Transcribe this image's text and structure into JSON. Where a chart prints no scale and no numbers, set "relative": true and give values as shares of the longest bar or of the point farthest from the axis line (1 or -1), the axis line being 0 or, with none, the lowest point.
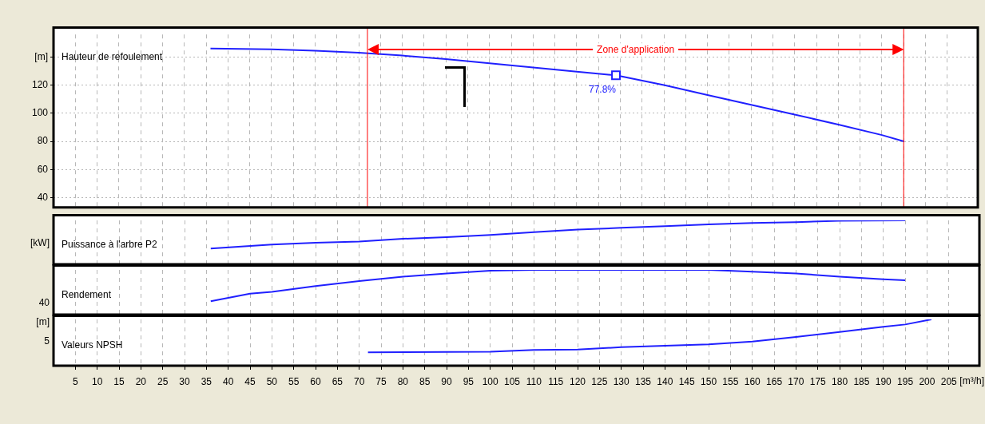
{
  "chart_data": [
    {
      "type": "line",
      "title": "Hauteur de refoulement",
      "xlim": [
        0,
        212
      ],
      "xticks": [
        5,
        10,
        15,
        20,
        25,
        30,
        35,
        40,
        45,
        50,
        55,
        60,
        65,
        70,
        75,
        80,
        85,
        90,
        95,
        100,
        105,
        110,
        115,
        120,
        125,
        130,
        135,
        140,
        145,
        150,
        155,
        160,
        165,
        170,
        175,
        180,
        185,
        190,
        195,
        200,
        205
      ],
      "ylim": [
        33,
        156
      ],
      "yticks": [
        40,
        60,
        80,
        100,
        120,
        {
          "value": 140,
          "label": "[m]"
        }
      ],
      "tick_labels": "y",
      "grid": true,
      "series": [
        {
          "color": "#2020ff",
          "x": [
            36,
            50,
            60,
            70,
            80,
            90,
            100,
            110,
            120,
            129,
            140,
            150,
            160,
            170,
            180,
            190,
            195
          ],
          "values": [
            146,
            145.5,
            144.5,
            143,
            141,
            138.5,
            135.5,
            132.5,
            129.5,
            127,
            120,
            113,
            106,
            99,
            92,
            84.5,
            80
          ]
        },
        {
          "type": "scatter",
          "marker": "square",
          "color": "#2020ff",
          "x": [
            129
          ],
          "values": [
            127
          ]
        }
      ],
      "annotations": [
        {
          "text": "77.8%",
          "x": 129,
          "y": 127
        },
        "Zone d'application"
      ],
      "ref_lines": [
        {
          "axis": "x",
          "value": 72,
          "color": "#ff0000"
        },
        {
          "axis": "x",
          "value": 195,
          "color": "#ff0000"
        }
      ]
    },
    {
      "type": "line",
      "title": "Puissance à l'arbre P2",
      "ylabel": "[kW]",
      "relative": true,
      "xlim": [
        0,
        212
      ],
      "xticks": [
        5,
        10,
        15,
        20,
        25,
        30,
        35,
        40,
        45,
        50,
        55,
        60,
        65,
        70,
        75,
        80,
        85,
        90,
        95,
        100,
        105,
        110,
        115,
        120,
        125,
        130,
        135,
        140,
        145,
        150,
        155,
        160,
        165,
        170,
        175,
        180,
        185,
        190,
        195,
        200,
        205
      ],
      "tick_labels": false,
      "grid": "x",
      "series": [
        {
          "color": "#2020ff",
          "x": [
            36,
            50,
            60,
            70,
            80,
            90,
            100,
            110,
            120,
            130,
            140,
            150,
            160,
            170,
            180,
            195
          ],
          "values": [
            0.36,
            0.45,
            0.49,
            0.52,
            0.58,
            0.62,
            0.67,
            0.73,
            0.79,
            0.83,
            0.87,
            0.91,
            0.94,
            0.96,
            0.99,
            1
          ]
        }
      ]
    },
    {
      "type": "line",
      "title": "Rendement",
      "relative": true,
      "annotations": [
        "40"
      ],
      "xlim": [
        0,
        212
      ],
      "xticks": [
        5,
        10,
        15,
        20,
        25,
        30,
        35,
        40,
        45,
        50,
        55,
        60,
        65,
        70,
        75,
        80,
        85,
        90,
        95,
        100,
        105,
        110,
        115,
        120,
        125,
        130,
        135,
        140,
        145,
        150,
        155,
        160,
        165,
        170,
        175,
        180,
        185,
        190,
        195,
        200,
        205
      ],
      "tick_labels": false,
      "grid": "x",
      "series": [
        {
          "color": "#2020ff",
          "x": [
            36,
            45,
            50,
            60,
            70,
            80,
            90,
            100,
            110,
            150,
            160,
            170,
            180,
            190,
            195
          ],
          "values": [
            0.3,
            0.47,
            0.51,
            0.64,
            0.75,
            0.85,
            0.92,
            0.98,
            1,
            1,
            0.96,
            0.92,
            0.85,
            0.79,
            0.77
          ]
        }
      ]
    },
    {
      "type": "line",
      "title": "Valeurs NPSH",
      "ylabel": "[m]",
      "relative": true,
      "annotations": [
        "5"
      ],
      "xlabel": "[m³/h]",
      "xlim": [
        0,
        212
      ],
      "xticks": [
        5,
        10,
        15,
        20,
        25,
        30,
        35,
        40,
        45,
        50,
        55,
        60,
        65,
        70,
        75,
        80,
        85,
        90,
        95,
        100,
        105,
        110,
        115,
        120,
        125,
        130,
        135,
        140,
        145,
        150,
        155,
        160,
        165,
        170,
        175,
        180,
        185,
        190,
        195,
        200,
        205
      ],
      "tick_labels": "x",
      "grid": "x",
      "series": [
        {
          "color": "#2020ff",
          "x": [
            72,
            100,
            110,
            120,
            130,
            140,
            150,
            160,
            170,
            180,
            190,
            195,
            201
          ],
          "values": [
            0.29,
            0.3,
            0.34,
            0.35,
            0.4,
            0.43,
            0.46,
            0.52,
            0.62,
            0.73,
            0.84,
            0.89,
            1
          ]
        }
      ]
    }
  ]
}
